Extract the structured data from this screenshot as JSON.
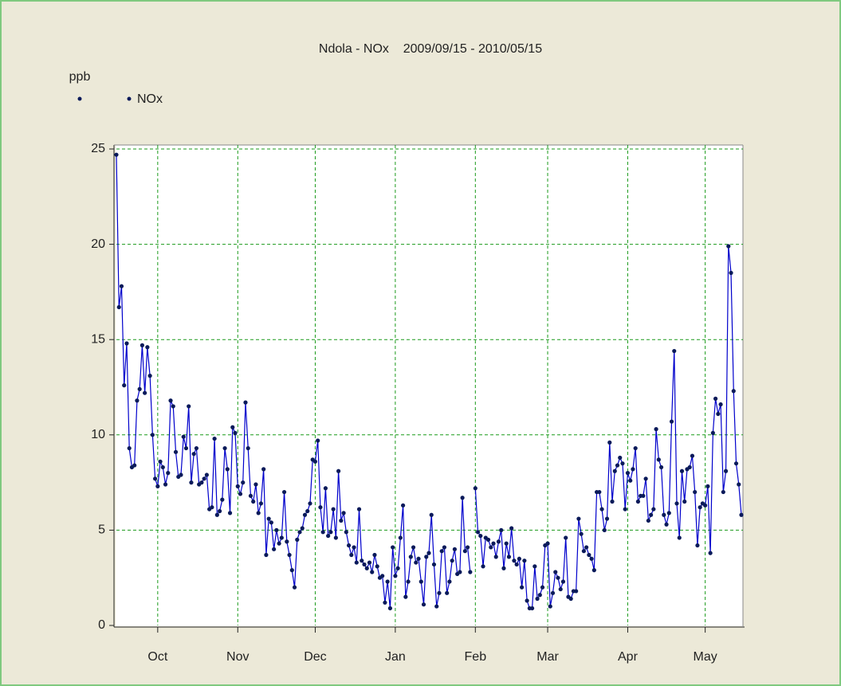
{
  "chart_data": {
    "type": "line",
    "title": "Ndola - NOx    2009/09/15 - 2010/05/15",
    "y_label": "ppb",
    "xlim": [
      0,
      242
    ],
    "xticks": [
      {
        "value": 16,
        "label": "Oct"
      },
      {
        "value": 47,
        "label": "Nov"
      },
      {
        "value": 77,
        "label": "Dec"
      },
      {
        "value": 108,
        "label": "Jan"
      },
      {
        "value": 139,
        "label": "Feb"
      },
      {
        "value": 167,
        "label": "Mar"
      },
      {
        "value": 198,
        "label": "Apr"
      },
      {
        "value": 228,
        "label": "May"
      }
    ],
    "ylim": [
      0,
      25
    ],
    "yticks": [
      0,
      5,
      10,
      15,
      20,
      25
    ],
    "grid": true,
    "series": [
      {
        "name": "NOx",
        "color": "#0000cc",
        "marker_color": "#0a1a5a",
        "values": [
          24.7,
          16.7,
          17.8,
          12.6,
          14.8,
          9.3,
          8.3,
          8.4,
          11.8,
          12.4,
          14.7,
          12.2,
          14.6,
          13.1,
          10.0,
          7.7,
          7.3,
          8.6,
          8.3,
          7.4,
          8.0,
          11.8,
          11.5,
          9.1,
          7.8,
          7.9,
          9.9,
          9.3,
          11.5,
          7.5,
          9.0,
          9.3,
          7.4,
          7.5,
          7.7,
          7.9,
          6.1,
          6.2,
          9.8,
          5.8,
          6.0,
          6.6,
          9.3,
          8.2,
          5.9,
          10.4,
          10.1,
          7.3,
          6.9,
          7.5,
          11.7,
          9.3,
          6.8,
          6.5,
          7.4,
          5.9,
          6.4,
          8.2,
          3.7,
          5.6,
          5.4,
          4.0,
          5.0,
          4.3,
          4.6,
          7.0,
          4.4,
          3.7,
          2.9,
          2.0,
          4.5,
          4.9,
          5.1,
          5.8,
          6.0,
          6.4,
          8.7,
          8.6,
          9.7,
          6.2,
          4.9,
          7.2,
          4.7,
          4.9,
          6.1,
          4.6,
          8.1,
          5.5,
          5.9,
          4.9,
          4.2,
          3.7,
          4.1,
          3.3,
          6.1,
          3.4,
          3.2,
          3.0,
          3.3,
          2.8,
          3.7,
          3.1,
          2.5,
          2.6,
          1.2,
          2.3,
          0.9,
          4.1,
          2.6,
          3.0,
          4.6,
          6.3,
          1.5,
          2.3,
          3.6,
          4.1,
          3.3,
          3.5,
          2.3,
          1.1,
          3.6,
          3.8,
          5.8,
          3.2,
          1.0,
          1.7,
          3.9,
          4.1,
          1.7,
          2.3,
          3.4,
          4.0,
          2.7,
          2.8,
          6.7,
          3.9,
          4.1,
          2.8,
          null,
          7.2,
          4.9,
          4.7,
          3.1,
          4.6,
          4.5,
          4.1,
          4.3,
          3.6,
          4.4,
          5.0,
          3.0,
          4.3,
          3.6,
          5.1,
          3.4,
          3.2,
          3.5,
          2.0,
          3.4,
          1.3,
          0.9,
          0.9,
          3.1,
          1.4,
          1.6,
          2.0,
          4.2,
          4.3,
          1.0,
          1.7,
          2.8,
          2.5,
          1.9,
          2.3,
          4.6,
          1.5,
          1.4,
          1.8,
          1.8,
          5.6,
          4.8,
          3.9,
          4.1,
          3.7,
          3.5,
          2.9,
          7.0,
          7.0,
          6.1,
          5.0,
          5.6,
          9.6,
          6.5,
          8.1,
          8.4,
          8.8,
          8.5,
          6.1,
          8.0,
          7.6,
          8.2,
          9.3,
          6.5,
          6.8,
          6.8,
          7.7,
          5.5,
          5.8,
          6.1,
          10.3,
          8.7,
          8.3,
          5.8,
          5.3,
          5.9,
          10.7,
          14.4,
          6.4,
          4.6,
          8.1,
          6.5,
          8.2,
          8.3,
          8.9,
          7.0,
          4.2,
          6.2,
          6.4,
          6.3,
          7.3,
          3.8,
          10.1,
          11.9,
          11.1,
          11.6,
          7.0,
          8.1,
          19.9,
          18.5,
          12.3,
          8.5,
          7.4,
          5.8
        ]
      }
    ]
  }
}
